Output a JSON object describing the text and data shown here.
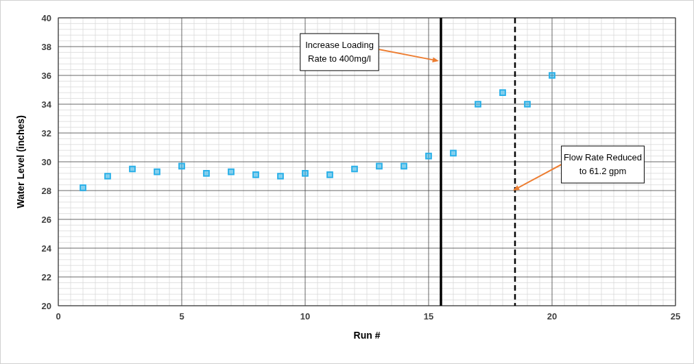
{
  "chart_data": {
    "type": "scatter",
    "xlabel": "Run #",
    "ylabel": "Water Level (inches)",
    "x": [
      1,
      2,
      3,
      4,
      5,
      6,
      7,
      8,
      9,
      10,
      11,
      12,
      13,
      14,
      15,
      16,
      17,
      18,
      19,
      20
    ],
    "series": [
      {
        "color": "#2ab0e8",
        "values": [
          28.2,
          29.0,
          29.5,
          29.3,
          29.7,
          29.2,
          29.3,
          29.1,
          29.0,
          29.2,
          29.1,
          29.5,
          29.7,
          29.7,
          30.4,
          30.6,
          34.0,
          34.8,
          34.0,
          36.0
        ]
      }
    ],
    "xlim": [
      0,
      25
    ],
    "xticks": [
      0,
      5,
      10,
      15,
      20,
      25
    ],
    "ylim": [
      20,
      40
    ],
    "yticks": [
      20,
      22,
      24,
      26,
      28,
      30,
      32,
      34,
      36,
      38,
      40
    ],
    "grid": true,
    "marker": "square",
    "ref_lines": [
      {
        "axis": "x",
        "value": 15.5,
        "color": "#000000",
        "line_style": "solid"
      },
      {
        "axis": "x",
        "value": 18.5,
        "color": "#000000",
        "line_style": "dashed"
      }
    ],
    "annotations": [
      {
        "text": "Increase Loading Rate to 400mg/l",
        "x": 15.5,
        "y": 37.0
      },
      {
        "text": "Flow Rate Reduced to 61.2 gpm",
        "x": 18.5,
        "y": 28.0
      }
    ]
  }
}
